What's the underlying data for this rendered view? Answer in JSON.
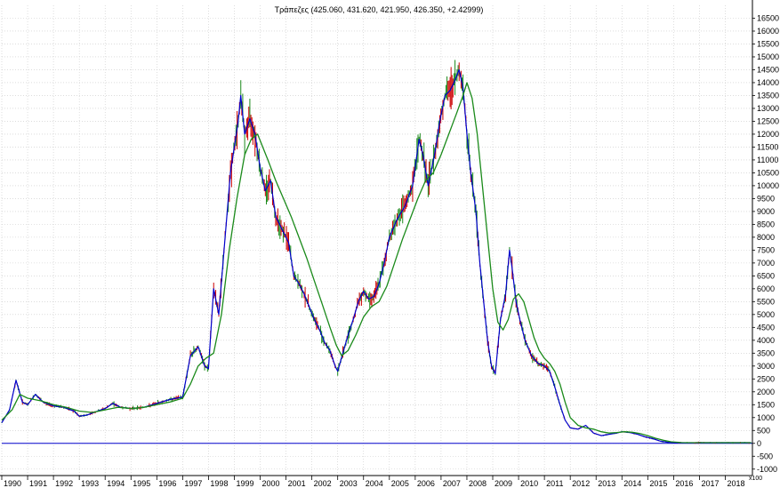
{
  "chart_data": {
    "type": "line",
    "title": "Τράπεζες (425.060, 431.620, 421.950, 426.350, +2.42999)",
    "y_unit": "x100",
    "xlim": [
      1990.0,
      2019.05
    ],
    "ylim": [
      -1250,
      17000
    ],
    "grid": true,
    "y_ticks": [
      -1000,
      -500,
      0,
      500,
      1000,
      1500,
      2000,
      2500,
      3000,
      3500,
      4000,
      4500,
      5000,
      5500,
      6000,
      6500,
      7000,
      7500,
      8000,
      8500,
      9000,
      9500,
      10000,
      10500,
      11000,
      11500,
      12000,
      12500,
      13000,
      13500,
      14000,
      14500,
      15000,
      15500,
      16000,
      16500
    ],
    "x_ticks": [
      "1990",
      "1991",
      "1992",
      "1993",
      "1994",
      "1995",
      "1996",
      "1997",
      "1998",
      "1999",
      "2000",
      "2001",
      "2002",
      "2003",
      "2004",
      "2005",
      "2006",
      "2007",
      "2008",
      "2009",
      "2010",
      "2011",
      "2012",
      "2013",
      "2014",
      "2015",
      "2016",
      "2017",
      "2018"
    ],
    "colors": {
      "price_high": "#cc0000",
      "price_low": "#1a8a1a",
      "price_line": "#0000cc",
      "moving_average": "#1a8a1a",
      "zero_line": "#0000cc",
      "grid": "#c8c8c8"
    },
    "series": [
      {
        "role": "price",
        "points": [
          [
            1990.0,
            800
          ],
          [
            1990.3,
            1300
          ],
          [
            1990.55,
            2450
          ],
          [
            1990.8,
            1600
          ],
          [
            1991.0,
            1500
          ],
          [
            1991.3,
            1900
          ],
          [
            1991.6,
            1600
          ],
          [
            1992.0,
            1450
          ],
          [
            1992.4,
            1400
          ],
          [
            1992.8,
            1250
          ],
          [
            1993.0,
            1050
          ],
          [
            1993.3,
            1100
          ],
          [
            1993.7,
            1250
          ],
          [
            1994.0,
            1350
          ],
          [
            1994.3,
            1550
          ],
          [
            1994.6,
            1400
          ],
          [
            1995.0,
            1350
          ],
          [
            1995.5,
            1400
          ],
          [
            1996.0,
            1550
          ],
          [
            1996.5,
            1700
          ],
          [
            1997.0,
            1800
          ],
          [
            1997.3,
            3400
          ],
          [
            1997.6,
            3750
          ],
          [
            1997.85,
            3000
          ],
          [
            1998.0,
            2900
          ],
          [
            1998.2,
            6000
          ],
          [
            1998.4,
            5000
          ],
          [
            1998.6,
            7500
          ],
          [
            1998.85,
            10500
          ],
          [
            1999.15,
            12500
          ],
          [
            1999.25,
            13500
          ],
          [
            1999.4,
            12000
          ],
          [
            1999.6,
            12600
          ],
          [
            1999.8,
            12000
          ],
          [
            2000.0,
            10700
          ],
          [
            2000.2,
            9800
          ],
          [
            2000.4,
            10200
          ],
          [
            2000.6,
            8800
          ],
          [
            2000.85,
            8300
          ],
          [
            2001.1,
            7800
          ],
          [
            2001.3,
            6500
          ],
          [
            2001.5,
            6200
          ],
          [
            2001.7,
            5800
          ],
          [
            2001.9,
            5300
          ],
          [
            2002.1,
            4800
          ],
          [
            2002.3,
            4400
          ],
          [
            2002.5,
            3900
          ],
          [
            2002.7,
            3600
          ],
          [
            2002.9,
            3000
          ],
          [
            2003.0,
            2800
          ],
          [
            2003.2,
            3500
          ],
          [
            2003.4,
            4200
          ],
          [
            2003.6,
            4800
          ],
          [
            2003.8,
            5500
          ],
          [
            2004.0,
            5900
          ],
          [
            2004.2,
            5600
          ],
          [
            2004.4,
            5700
          ],
          [
            2004.6,
            6200
          ],
          [
            2004.8,
            7000
          ],
          [
            2005.0,
            8000
          ],
          [
            2005.3,
            8700
          ],
          [
            2005.6,
            9200
          ],
          [
            2005.9,
            10000
          ],
          [
            2006.15,
            11800
          ],
          [
            2006.3,
            11200
          ],
          [
            2006.5,
            10000
          ],
          [
            2006.75,
            11200
          ],
          [
            2006.95,
            12500
          ],
          [
            2007.15,
            13500
          ],
          [
            2007.35,
            13700
          ],
          [
            2007.5,
            14000
          ],
          [
            2007.7,
            14500
          ],
          [
            2007.85,
            13800
          ],
          [
            2008.0,
            12000
          ],
          [
            2008.15,
            10500
          ],
          [
            2008.35,
            9000
          ],
          [
            2008.5,
            7000
          ],
          [
            2008.65,
            5500
          ],
          [
            2008.8,
            4000
          ],
          [
            2008.95,
            3000
          ],
          [
            2009.1,
            2700
          ],
          [
            2009.3,
            4800
          ],
          [
            2009.5,
            5800
          ],
          [
            2009.65,
            7500
          ],
          [
            2009.75,
            6800
          ],
          [
            2009.9,
            5500
          ],
          [
            2010.05,
            4800
          ],
          [
            2010.25,
            4000
          ],
          [
            2010.5,
            3400
          ],
          [
            2010.75,
            3100
          ],
          [
            2011.0,
            3000
          ],
          [
            2011.2,
            2800
          ],
          [
            2011.4,
            2200
          ],
          [
            2011.6,
            1500
          ],
          [
            2011.8,
            900
          ],
          [
            2012.0,
            600
          ],
          [
            2012.3,
            550
          ],
          [
            2012.6,
            700
          ],
          [
            2012.9,
            400
          ],
          [
            2013.2,
            300
          ],
          [
            2013.5,
            350
          ],
          [
            2013.8,
            400
          ],
          [
            2014.0,
            450
          ],
          [
            2014.3,
            420
          ],
          [
            2014.6,
            350
          ],
          [
            2014.9,
            250
          ],
          [
            2015.2,
            180
          ],
          [
            2015.5,
            80
          ],
          [
            2015.8,
            40
          ],
          [
            2016.2,
            25
          ],
          [
            2016.6,
            20
          ],
          [
            2017.0,
            25
          ],
          [
            2017.5,
            25
          ],
          [
            2018.0,
            25
          ],
          [
            2018.5,
            25
          ],
          [
            2019.0,
            25
          ]
        ]
      },
      {
        "role": "moving_average",
        "points": [
          [
            1990.0,
            900
          ],
          [
            1990.4,
            1300
          ],
          [
            1990.7,
            1900
          ],
          [
            1991.0,
            1750
          ],
          [
            1991.5,
            1650
          ],
          [
            1992.0,
            1500
          ],
          [
            1992.5,
            1400
          ],
          [
            1993.0,
            1250
          ],
          [
            1993.5,
            1200
          ],
          [
            1994.0,
            1300
          ],
          [
            1994.5,
            1400
          ],
          [
            1995.0,
            1350
          ],
          [
            1995.5,
            1400
          ],
          [
            1996.0,
            1500
          ],
          [
            1996.5,
            1600
          ],
          [
            1997.0,
            1750
          ],
          [
            1997.3,
            2300
          ],
          [
            1997.6,
            3000
          ],
          [
            1997.9,
            3300
          ],
          [
            1998.2,
            3500
          ],
          [
            1998.5,
            5000
          ],
          [
            1998.8,
            7500
          ],
          [
            1999.1,
            9500
          ],
          [
            1999.4,
            11200
          ],
          [
            1999.65,
            11800
          ],
          [
            1999.9,
            12000
          ],
          [
            2000.1,
            11500
          ],
          [
            2000.3,
            11000
          ],
          [
            2000.6,
            10200
          ],
          [
            2000.9,
            9500
          ],
          [
            2001.2,
            8800
          ],
          [
            2001.5,
            8000
          ],
          [
            2001.8,
            7200
          ],
          [
            2002.1,
            6300
          ],
          [
            2002.4,
            5400
          ],
          [
            2002.7,
            4500
          ],
          [
            2002.95,
            3800
          ],
          [
            2003.15,
            3400
          ],
          [
            2003.4,
            3600
          ],
          [
            2003.7,
            4200
          ],
          [
            2004.0,
            4900
          ],
          [
            2004.3,
            5300
          ],
          [
            2004.6,
            5500
          ],
          [
            2004.9,
            6100
          ],
          [
            2005.2,
            7000
          ],
          [
            2005.5,
            7900
          ],
          [
            2005.8,
            8700
          ],
          [
            2006.1,
            9500
          ],
          [
            2006.4,
            10200
          ],
          [
            2006.7,
            10500
          ],
          [
            2007.0,
            11200
          ],
          [
            2007.3,
            12000
          ],
          [
            2007.6,
            12800
          ],
          [
            2007.85,
            13500
          ],
          [
            2008.0,
            14000
          ],
          [
            2008.2,
            13400
          ],
          [
            2008.4,
            12000
          ],
          [
            2008.6,
            10000
          ],
          [
            2008.8,
            8000
          ],
          [
            2009.0,
            6000
          ],
          [
            2009.2,
            4700
          ],
          [
            2009.4,
            4400
          ],
          [
            2009.6,
            4800
          ],
          [
            2009.8,
            5600
          ],
          [
            2010.0,
            5800
          ],
          [
            2010.2,
            5500
          ],
          [
            2010.4,
            4800
          ],
          [
            2010.6,
            4100
          ],
          [
            2010.8,
            3600
          ],
          [
            2011.0,
            3300
          ],
          [
            2011.2,
            3100
          ],
          [
            2011.4,
            2800
          ],
          [
            2011.6,
            2300
          ],
          [
            2011.8,
            1600
          ],
          [
            2012.0,
            1000
          ],
          [
            2012.3,
            700
          ],
          [
            2012.6,
            600
          ],
          [
            2012.9,
            550
          ],
          [
            2013.2,
            450
          ],
          [
            2013.5,
            400
          ],
          [
            2013.8,
            420
          ],
          [
            2014.1,
            450
          ],
          [
            2014.4,
            430
          ],
          [
            2014.7,
            380
          ],
          [
            2015.0,
            300
          ],
          [
            2015.3,
            200
          ],
          [
            2015.6,
            120
          ],
          [
            2015.9,
            60
          ],
          [
            2016.3,
            30
          ],
          [
            2017.0,
            25
          ],
          [
            2018.0,
            25
          ],
          [
            2019.0,
            25
          ]
        ]
      }
    ]
  }
}
